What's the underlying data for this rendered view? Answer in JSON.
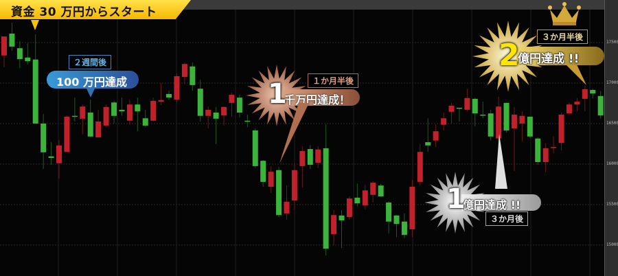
{
  "banner": {
    "text": "資金 30 万円からスタート",
    "color": "#f5c400"
  },
  "callouts": {
    "c1": {
      "sub": "２週間後",
      "main": "100 万円達成",
      "color": "#2a7fc8"
    },
    "c2": {
      "num": "1",
      "sub": "１か月半後",
      "main": "千万円達成！",
      "color": "#b8765a"
    },
    "c3": {
      "num": "1",
      "sub": "３か月後",
      "main": "億円達成 !!",
      "color": "#c8c8c8"
    },
    "c4": {
      "num": "2",
      "sub": "３か月半後",
      "main": "億円達成 !!",
      "color": "#d4b24a",
      "icon": "crown-icon"
    }
  },
  "chart_data": {
    "type": "candlestick",
    "up_color": "#c0212b",
    "down_color": "#3cb43c",
    "ylim": [
      14600,
      18000
    ],
    "yticks": [
      "17500",
      "17000",
      "16500",
      "16000",
      "15500",
      "15000"
    ],
    "grid": true,
    "ohlc": [
      [
        17340,
        17575,
        17195,
        17575
      ],
      [
        17610,
        17745,
        17400,
        17450
      ],
      [
        17430,
        17515,
        17185,
        17295
      ],
      [
        17315,
        17490,
        17230,
        17270
      ],
      [
        17290,
        17600,
        16500,
        16500
      ],
      [
        16500,
        16620,
        15940,
        16145
      ],
      [
        16095,
        16270,
        15990,
        16075
      ],
      [
        16010,
        16295,
        15820,
        16230
      ],
      [
        16150,
        16600,
        16150,
        16585
      ],
      [
        16595,
        16820,
        16525,
        16585
      ],
      [
        16560,
        16735,
        16365,
        16710
      ],
      [
        16635,
        16795,
        16335,
        16340
      ],
      [
        16330,
        16670,
        16330,
        16525
      ],
      [
        16475,
        16735,
        16455,
        16705
      ],
      [
        16760,
        16780,
        16500,
        16595
      ],
      [
        16670,
        16820,
        16595,
        16650
      ],
      [
        16535,
        16790,
        16485,
        16735
      ],
      [
        16735,
        16820,
        16405,
        16650
      ],
      [
        16565,
        16670,
        16455,
        16475
      ],
      [
        16535,
        16820,
        16525,
        16780
      ],
      [
        16770,
        17000,
        16730,
        16790
      ],
      [
        16865,
        16905,
        16795,
        16820
      ],
      [
        16795,
        17120,
        16760,
        17085
      ],
      [
        17075,
        17255,
        16985,
        17235
      ],
      [
        17205,
        17255,
        16905,
        16975
      ],
      [
        16930,
        17040,
        16525,
        16595
      ],
      [
        16595,
        16710,
        16440,
        16670
      ],
      [
        16635,
        16705,
        16245,
        16560
      ],
      [
        16600,
        16710,
        16475,
        16705
      ],
      [
        16755,
        16880,
        16585,
        16855
      ],
      [
        16820,
        16855,
        16575,
        16635
      ],
      [
        16535,
        16610,
        16455,
        16530
      ],
      [
        16415,
        16440,
        15950,
        15975
      ],
      [
        16040,
        16050,
        15720,
        15780
      ],
      [
        15720,
        15975,
        15645,
        15905
      ],
      [
        15925,
        15965,
        15345,
        15370
      ],
      [
        15390,
        15735,
        15315,
        15535
      ],
      [
        15550,
        16010,
        15440,
        15925
      ],
      [
        15975,
        16220,
        15710,
        16160
      ],
      [
        16185,
        16235,
        15940,
        15990
      ],
      [
        16015,
        16220,
        15950,
        16180
      ],
      [
        16195,
        16490,
        14870,
        14955
      ],
      [
        15135,
        15430,
        15000,
        15370
      ],
      [
        15365,
        15430,
        14965,
        15305
      ],
      [
        15345,
        15600,
        15315,
        15575
      ],
      [
        15585,
        15760,
        15475,
        15515
      ],
      [
        15490,
        15745,
        15440,
        15675
      ],
      [
        15620,
        15790,
        15525,
        15770
      ],
      [
        15735,
        15755,
        15595,
        15600
      ],
      [
        15525,
        15540,
        15145,
        15290
      ],
      [
        15365,
        15370,
        15100,
        15260
      ],
      [
        15290,
        15390,
        15085,
        15125
      ],
      [
        15195,
        15805,
        15100,
        15720
      ],
      [
        15780,
        16245,
        15735,
        16150
      ],
      [
        16270,
        16565,
        16150,
        16230
      ],
      [
        16290,
        16490,
        16210,
        16405
      ],
      [
        16485,
        16635,
        16415,
        16565
      ],
      [
        16645,
        16755,
        16500,
        16720
      ],
      [
        16695,
        16695,
        16525,
        16685
      ],
      [
        16670,
        16930,
        16650,
        16815
      ],
      [
        16805,
        16820,
        16465,
        16625
      ],
      [
        16610,
        16770,
        16565,
        16605
      ],
      [
        16625,
        16670,
        16290,
        16340
      ],
      [
        16315,
        16830,
        16235,
        16710
      ],
      [
        16755,
        16760,
        16390,
        16415
      ],
      [
        16440,
        16705,
        15915,
        16610
      ],
      [
        16500,
        16650,
        16280,
        16595
      ],
      [
        16585,
        16585,
        16320,
        16340
      ],
      [
        16315,
        16330,
        15990,
        16025
      ],
      [
        16025,
        16255,
        15900,
        16195
      ],
      [
        16205,
        16340,
        16135,
        16210
      ],
      [
        16260,
        16635,
        16170,
        16610
      ],
      [
        16625,
        16760,
        16610,
        16735
      ],
      [
        16735,
        16815,
        16650,
        16770
      ],
      [
        16805,
        16965,
        16650,
        16925
      ],
      [
        16915,
        16930,
        16810,
        16870
      ],
      [
        16840,
        16900,
        16560,
        16600
      ]
    ]
  }
}
